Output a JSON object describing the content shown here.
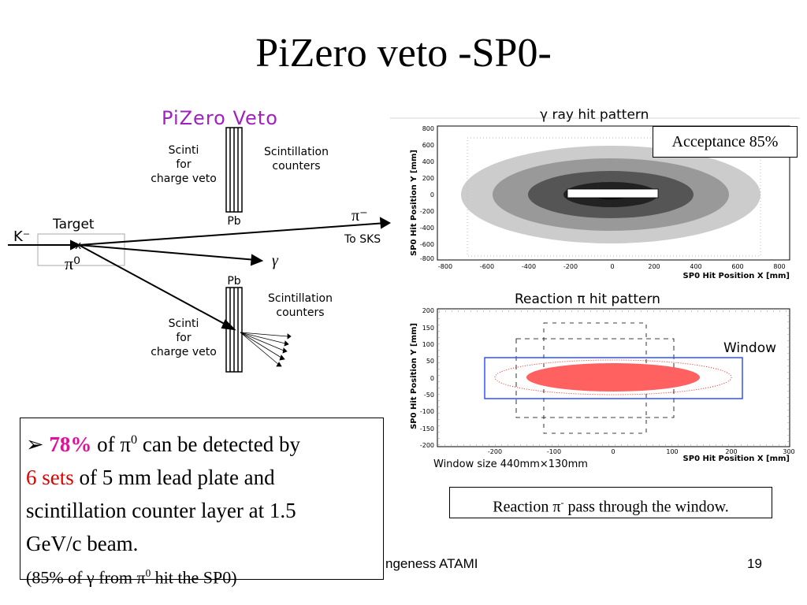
{
  "slide": {
    "title": "PiZero veto -SP0-",
    "footer_text": "ngeness ATAMI",
    "page_number": "19"
  },
  "diagram": {
    "heading": "PiZero Veto",
    "scinti_top": [
      "Scinti",
      "for",
      "charge veto"
    ],
    "scinti_bottom": [
      "Scinti",
      "for",
      "charge veto"
    ],
    "counters_top": [
      "Scintillation",
      "counters"
    ],
    "counters_bottom": [
      "Scintillation",
      "counters"
    ],
    "pb_top": "Pb",
    "pb_bottom": "Pb",
    "target": "Target",
    "kminus": "K⁻",
    "piminus": "π⁻",
    "to_sks": "To SKS",
    "gamma": "γ",
    "pi0": "π⁰",
    "x_mark": "x",
    "colors": {
      "heading": "#a020c0"
    }
  },
  "plot_gamma": {
    "title": "γ  ray hit pattern",
    "xlabel": "SP0 Hit Position X [mm]",
    "ylabel": "SP0 Hit Position Y [mm]",
    "xticks": [
      "-800",
      "-600",
      "-400",
      "-200",
      "0",
      "200",
      "400",
      "600",
      "800"
    ],
    "yticks": [
      "800",
      "600",
      "400",
      "200",
      "0",
      "-200",
      "-400",
      "-600",
      "-800"
    ],
    "annotation": "Acceptance 85%"
  },
  "plot_reaction": {
    "title": "Reaction  π  hit pattern",
    "xlabel": "SP0 Hit Position X [mm]",
    "ylabel": "SP0 Hit Position Y [mm]",
    "xticks": [
      "-200",
      "-100",
      "0",
      "100",
      "200",
      "300"
    ],
    "yticks": [
      "200",
      "150",
      "100",
      "50",
      "0",
      "-50",
      "-100",
      "-150",
      "-200"
    ],
    "window_label": "Window",
    "window_size": "Window size 440mm×130mm",
    "caption_pre": "Reaction π",
    "caption_sup": "-",
    "caption_post": " pass through the window.",
    "colors": {
      "window": "#3050ff",
      "hits": "#ff2020"
    }
  },
  "bullet": {
    "marker": "➢",
    "pct": "78%",
    "t1": " of π",
    "sup1": "0",
    "t2": " can be detected by",
    "sets": "6 sets",
    "t3": " of 5 mm lead plate and",
    "t4": "scintillation counter layer at 1.5",
    "t5": "GeV/c beam.",
    "note_pre": "(85% of γ from π",
    "note_sup": "0",
    "note_post": " hit the SP0)"
  }
}
